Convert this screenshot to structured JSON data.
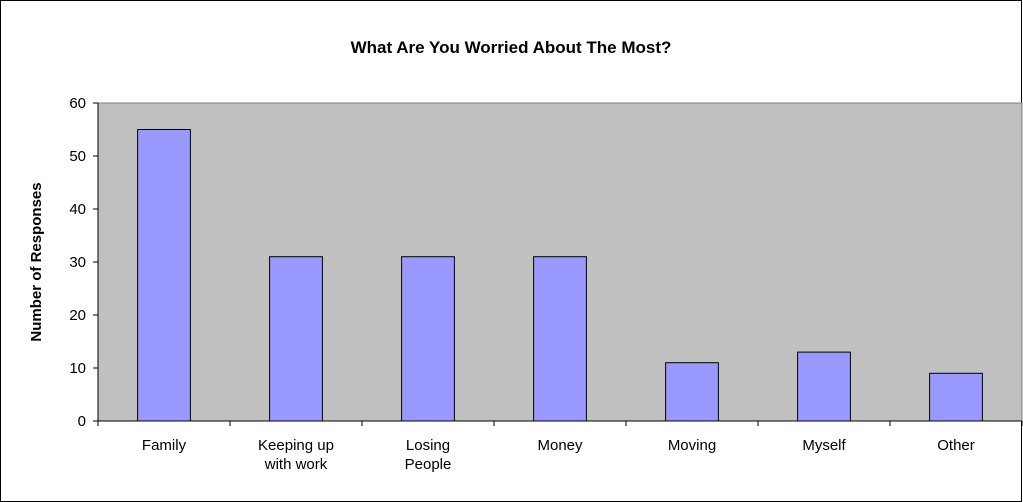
{
  "chart_data": {
    "type": "bar",
    "title": "What Are You Worried About The Most?",
    "y_label": "Number of Responses",
    "categories": [
      "Family",
      "Keeping up\nwith work",
      "Losing\nPeople",
      "Money",
      "Moving",
      "Myself",
      "Other"
    ],
    "values": [
      55,
      31,
      31,
      31,
      11,
      13,
      9
    ],
    "color": "#9999ff",
    "ylim": [
      0,
      60
    ],
    "yticks": [
      0,
      10,
      20,
      30,
      40,
      50,
      60
    ],
    "grid": false
  }
}
